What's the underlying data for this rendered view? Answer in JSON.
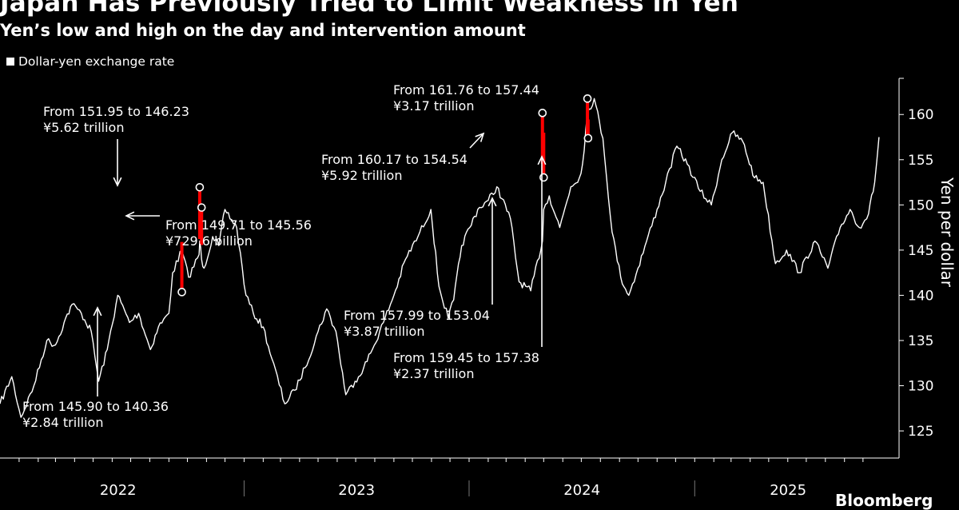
{
  "header": {
    "title": "Japan Has Previously Tried to Limit Weakness in Yen",
    "subtitle": "Yen’s low and high on the day and intervention amount"
  },
  "legend": {
    "label": "Dollar-yen exchange rate"
  },
  "footer": {
    "source": "Bloomberg"
  },
  "colors": {
    "line": "#ffffff",
    "intervention": "#ff0000",
    "background": "#000000"
  },
  "chart_data": {
    "type": "line",
    "title": "Japan Has Previously Tried to Limit Weakness in Yen",
    "subtitle": "Yen’s low and high on the day and intervention amount",
    "ylabel": "Yen per dollar",
    "xlabel": "",
    "ylim": [
      122,
      164
    ],
    "y_ticks": [
      125,
      130,
      135,
      140,
      145,
      150,
      155,
      160
    ],
    "xlim": [
      "2021-12-01",
      "2025-10-31"
    ],
    "x_tick_labels": [
      "2022",
      "2023",
      "2024",
      "2025"
    ],
    "x_year_boundaries": [
      "2023-01-01",
      "2024-01-01",
      "2025-01-01"
    ],
    "grid": false,
    "legend": "top-left",
    "series": [
      {
        "name": "Dollar-yen exchange rate",
        "x": [
          "2021-12-01",
          "2021-12-20",
          "2022-01-04",
          "2022-01-25",
          "2022-02-15",
          "2022-03-01",
          "2022-03-15",
          "2022-03-28",
          "2022-04-12",
          "2022-04-28",
          "2022-05-10",
          "2022-05-24",
          "2022-06-10",
          "2022-06-29",
          "2022-07-14",
          "2022-08-02",
          "2022-08-15",
          "2022-09-01",
          "2022-09-07",
          "2022-09-22",
          "2022-10-03",
          "2022-10-20",
          "2022-10-21",
          "2022-10-24",
          "2022-10-28",
          "2022-11-11",
          "2022-11-21",
          "2022-12-01",
          "2022-12-20",
          "2023-01-04",
          "2023-01-16",
          "2023-02-01",
          "2023-02-15",
          "2023-03-08",
          "2023-03-24",
          "2023-04-10",
          "2023-05-01",
          "2023-05-15",
          "2023-05-30",
          "2023-06-15",
          "2023-06-30",
          "2023-07-14",
          "2023-07-28",
          "2023-08-15",
          "2023-09-01",
          "2023-09-20",
          "2023-10-10",
          "2023-10-31",
          "2023-11-13",
          "2023-11-28",
          "2023-12-07",
          "2023-12-20",
          "2024-01-02",
          "2024-01-15",
          "2024-02-01",
          "2024-02-15",
          "2024-03-08",
          "2024-03-22",
          "2024-04-10",
          "2024-04-29",
          "2024-05-01",
          "2024-05-10",
          "2024-05-27",
          "2024-06-14",
          "2024-06-28",
          "2024-07-03",
          "2024-07-11",
          "2024-07-22",
          "2024-08-05",
          "2024-08-20",
          "2024-09-03",
          "2024-09-16",
          "2024-10-01",
          "2024-10-15",
          "2024-11-01",
          "2024-11-15",
          "2024-12-03",
          "2024-12-20",
          "2025-01-10",
          "2025-01-28",
          "2025-02-14",
          "2025-03-03",
          "2025-03-20",
          "2025-04-08",
          "2025-04-22",
          "2025-05-12",
          "2025-05-30",
          "2025-06-20",
          "2025-07-15",
          "2025-08-05",
          "2025-08-25",
          "2025-09-10",
          "2025-09-25",
          "2025-10-10",
          "2025-10-20",
          "2025-10-27"
        ],
        "values": [
          128,
          131,
          126.5,
          130,
          135,
          134.5,
          137,
          139,
          138,
          136,
          130.5,
          134,
          140,
          137,
          138,
          134,
          136.5,
          138,
          142.5,
          145,
          142,
          144.5,
          146,
          144,
          143,
          146.5,
          145.5,
          149.5,
          147.5,
          140,
          138,
          136.5,
          133,
          128,
          129.5,
          132,
          136,
          138.5,
          136,
          129,
          130.5,
          132,
          134,
          137,
          140,
          144,
          146.5,
          149.5,
          141,
          137.5,
          139.5,
          145.5,
          147.5,
          149.5,
          150.5,
          152,
          148.5,
          141.5,
          140.5,
          146,
          149.5,
          151,
          147.5,
          152,
          153,
          154.5,
          160.2,
          161.76,
          157.38,
          147,
          142,
          140,
          143,
          146,
          149.5,
          152.5,
          156.5,
          154.5,
          151.5,
          150,
          155,
          158,
          157,
          153,
          152.5,
          143.5,
          145,
          142.5,
          146,
          143,
          147.5,
          149.5,
          147.5,
          149,
          152.5,
          157.5
        ]
      }
    ],
    "interventions": [
      {
        "date": "2022-09-22",
        "high": 145.9,
        "low": 140.36,
        "label_range": "From 145.90 to 140.36",
        "label_amount": "¥2.84 trillion"
      },
      {
        "date": "2022-10-21",
        "high": 151.95,
        "low": 146.23,
        "label_range": "From 151.95 to 146.23",
        "label_amount": "¥5.62 trillion"
      },
      {
        "date": "2022-10-24",
        "high": 149.71,
        "low": 145.56,
        "label_range": "From 149.71 to 145.56",
        "label_amount": "¥729.6 billion"
      },
      {
        "date": "2024-04-29",
        "high": 160.17,
        "low": 154.54,
        "label_range": "From 160.17 to 154.54",
        "label_amount": "¥5.92 trillion"
      },
      {
        "date": "2024-05-01",
        "high": 157.99,
        "low": 153.04,
        "label_range": "From 157.99 to 153.04",
        "label_amount": "¥3.87 trillion"
      },
      {
        "date": "2024-07-11",
        "high": 161.76,
        "low": 157.44,
        "label_range": "From 161.76 to 157.44",
        "label_amount": "¥3.17 trillion"
      },
      {
        "date": "2024-07-12",
        "high": 159.45,
        "low": 157.38,
        "label_range": "From 159.45 to 157.38",
        "label_amount": "¥2.37 trillion"
      }
    ]
  }
}
